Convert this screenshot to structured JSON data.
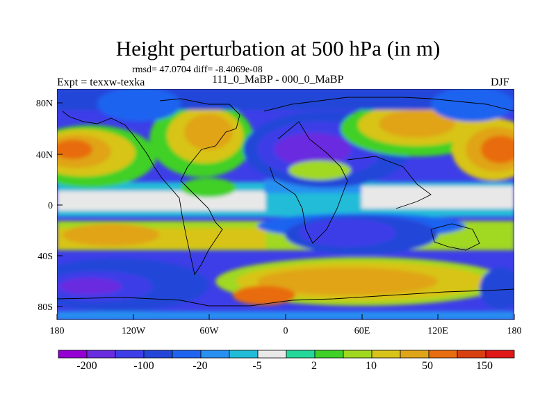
{
  "header": {
    "title": "Height perturbation at 500 hPa (in m)",
    "stats": "rmsd= 47.0704 diff= -8.4069e-08",
    "expt": "Expt = texxw-texka",
    "period": "111_0_MaBP - 000_0_MaBP",
    "season": "DJF"
  },
  "map": {
    "lat_ticks": [
      "80N",
      "40N",
      "0",
      "40S",
      "80S"
    ],
    "lon_ticks": [
      "180",
      "120W",
      "60W",
      "0",
      "60E",
      "120E",
      "180"
    ]
  },
  "colorbar": {
    "colors": [
      "#9400d3",
      "#6a2ce0",
      "#3d3ee8",
      "#2346d8",
      "#1e64f0",
      "#2890f0",
      "#20bcd8",
      "#e8e8e8",
      "#24d89a",
      "#40d028",
      "#a0d820",
      "#d8c418",
      "#e0a418",
      "#e86c10",
      "#d84010",
      "#e01818"
    ],
    "labels": [
      "-200",
      "-100",
      "-20",
      "-5",
      "2",
      "10",
      "50",
      "150"
    ]
  }
}
